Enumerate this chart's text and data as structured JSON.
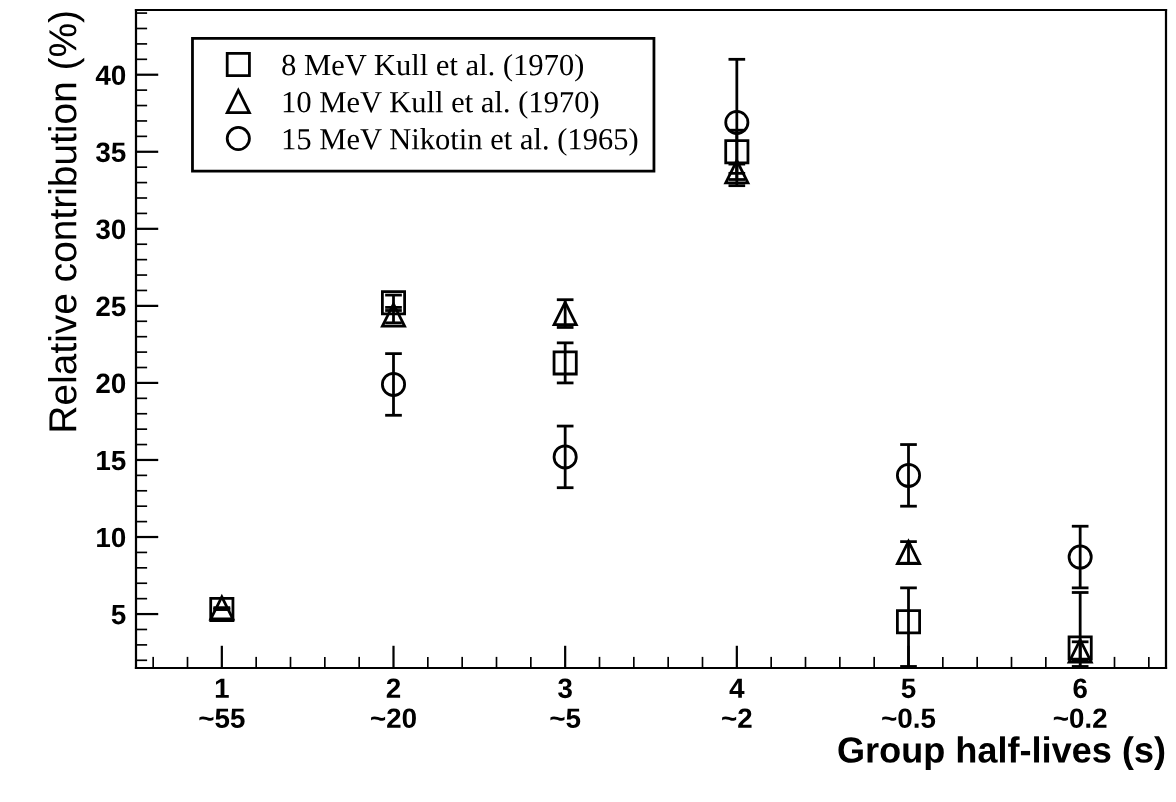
{
  "chart_data": {
    "type": "scatter",
    "xlabel": "Group half-lives (s)",
    "ylabel": "Relative contribution (%)",
    "categories": [
      "1\n~55",
      "2\n~20",
      "3\n~5",
      "4\n~2",
      "5\n~0.5",
      "6\n~0.2"
    ],
    "series": [
      {
        "name": "8 MeV Kull et al. (1970)",
        "color": "#000000",
        "marker": "square",
        "values": [
          5.3,
          25.2,
          21.3,
          35.0,
          4.5,
          2.8
        ],
        "errors": [
          null,
          0.5,
          1.3,
          1.4,
          [
            1.6,
            6.7
          ],
          [
            1.6,
            6.4
          ]
        ]
      },
      {
        "name": "10 MeV Kull et al. (1970)",
        "color": "#000000",
        "marker": "triangle",
        "values": [
          5.4,
          24.4,
          24.5,
          33.7,
          9.0,
          2.6
        ],
        "errors": [
          null,
          0.5,
          0.9,
          0.5,
          0.7,
          0.6
        ]
      },
      {
        "name": "15 MeV Nikotin et al. (1965)",
        "color": "#000000",
        "marker": "circle",
        "values": [
          null,
          19.9,
          15.2,
          36.9,
          14.0,
          8.7
        ],
        "errors": [
          null,
          2.0,
          2.0,
          4.1,
          2.0,
          2.0
        ]
      }
    ],
    "ylim": [
      1.5,
      44.2
    ],
    "yticks": [
      5,
      10,
      15,
      20,
      25,
      30,
      35,
      40
    ],
    "grid": false,
    "legend": "top left"
  }
}
